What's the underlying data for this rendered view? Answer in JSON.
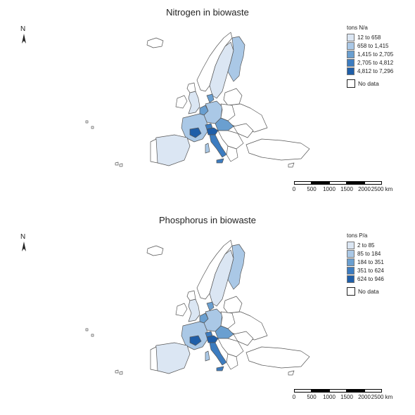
{
  "colors": {
    "class1": "#dbe6f3",
    "class2": "#aac8e6",
    "class3": "#6a9fd0",
    "class4": "#3c7cc0",
    "class5": "#1f5ea8",
    "nodata": "#ffffff",
    "border": "#555555"
  },
  "north_label": "N",
  "maps": [
    {
      "title": "Nitrogen in biowaste",
      "legend_title": "tons N/a",
      "classes": [
        "12 to 658",
        "658 to 1,415",
        "1,415 to 2,705",
        "2,705 to 4,812",
        "4,812 to 7,296"
      ],
      "nodata_label": "No data",
      "scale_ticks": [
        "0",
        "500",
        "1000",
        "1500",
        "2000",
        "2500 km"
      ]
    },
    {
      "title": "Phosphorus in biowaste",
      "legend_title": "tons P/a",
      "classes": [
        "2 to 85",
        "85 to 184",
        "184 to 351",
        "351 to 624",
        "624 to 946"
      ],
      "nodata_label": "No data",
      "scale_ticks": [
        "0",
        "500",
        "1000",
        "1500",
        "2000",
        "2500 km"
      ]
    }
  ]
}
